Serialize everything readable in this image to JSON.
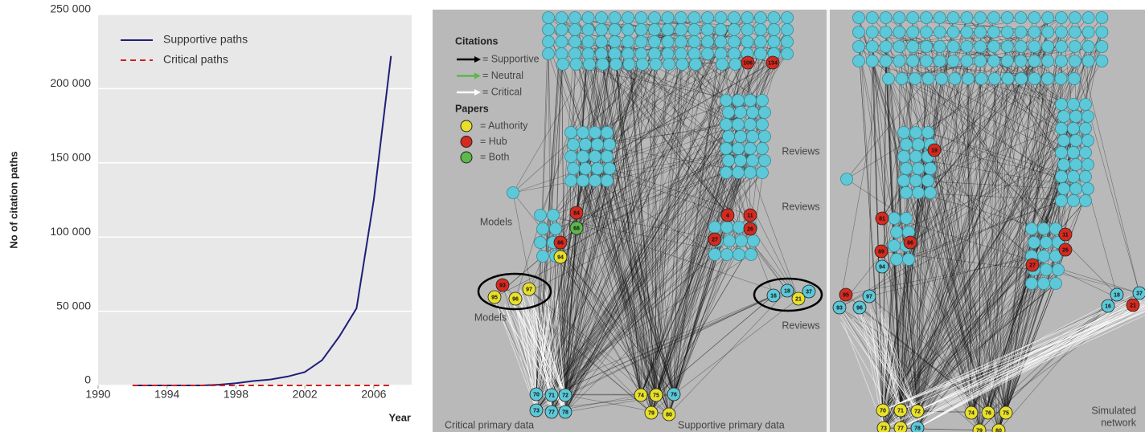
{
  "chart_data": {
    "type": "line",
    "ylabel": "No of citation paths",
    "xlabel": "Year",
    "x": [
      1992,
      1993,
      1994,
      1995,
      1996,
      1997,
      1998,
      1999,
      2000,
      2001,
      2002,
      2003,
      2004,
      2005,
      2006,
      2007
    ],
    "series": [
      {
        "name": "Supportive paths",
        "color": "#1f1f78",
        "dash": false,
        "values": [
          0,
          0,
          0,
          0,
          0,
          500,
          1500,
          3000,
          4000,
          6000,
          9000,
          17000,
          33000,
          52000,
          125000,
          222000
        ]
      },
      {
        "name": "Critical paths",
        "color": "#cc2222",
        "dash": true,
        "values": [
          0,
          0,
          0,
          0,
          0,
          0,
          0,
          0,
          0,
          0,
          0,
          0,
          0,
          0,
          0,
          0
        ]
      }
    ],
    "xlim": [
      1990,
      2008.2
    ],
    "xticks": [
      1990,
      1994,
      1998,
      2002,
      2006
    ],
    "ylim": [
      0,
      250000
    ],
    "yticks": [
      0,
      {
        "value": 50000,
        "label": "50 000"
      },
      {
        "value": 100000,
        "label": "100 000"
      },
      {
        "value": 150000,
        "label": "150 000"
      },
      {
        "value": 200000,
        "label": "200 000"
      },
      {
        "value": 250000,
        "label": "250 000"
      }
    ],
    "grid": true,
    "legend": "top-left"
  },
  "network": {
    "legend": {
      "citations": {
        "title": "Citations",
        "items": [
          "= Supportive",
          "= Neutral",
          "= Critical"
        ]
      },
      "papers": {
        "title": "Papers",
        "items": [
          "= Authority",
          "= Hub",
          "= Both"
        ]
      }
    },
    "panels": [
      {
        "labels": [
          "Models",
          "Models",
          "Reviews",
          "Reviews",
          "Reviews",
          "Critical primary data",
          "Supportive primary data"
        ],
        "nodes": [
          {
            "label": "106",
            "color": "#d42a1f"
          },
          {
            "label": "134",
            "color": "#d42a1f"
          },
          {
            "label": "84",
            "color": "#d42a1f"
          },
          {
            "label": "68",
            "color": "#5cb84a"
          },
          {
            "label": "86",
            "color": "#d42a1f"
          },
          {
            "label": "94",
            "color": "#e8e02a"
          },
          {
            "label": "4",
            "color": "#d42a1f"
          },
          {
            "label": "11",
            "color": "#d42a1f"
          },
          {
            "label": "26",
            "color": "#d42a1f"
          },
          {
            "label": "27",
            "color": "#d42a1f"
          },
          {
            "label": "93",
            "color": "#d42a1f"
          },
          {
            "label": "97",
            "color": "#e8e02a"
          },
          {
            "label": "95",
            "color": "#e8e02a"
          },
          {
            "label": "96",
            "color": "#e8e02a"
          },
          {
            "label": "16",
            "color": "#5cc8d8"
          },
          {
            "label": "18",
            "color": "#5cc8d8"
          },
          {
            "label": "37",
            "color": "#5cc8d8"
          },
          {
            "label": "21",
            "color": "#e8e02a"
          },
          {
            "label": "70",
            "color": "#5cc8d8"
          },
          {
            "label": "71",
            "color": "#5cc8d8"
          },
          {
            "label": "72",
            "color": "#5cc8d8"
          },
          {
            "label": "73",
            "color": "#5cc8d8"
          },
          {
            "label": "77",
            "color": "#5cc8d8"
          },
          {
            "label": "78",
            "color": "#5cc8d8"
          },
          {
            "label": "74",
            "color": "#e8e02a"
          },
          {
            "label": "75",
            "color": "#e8e02a"
          },
          {
            "label": "76",
            "color": "#5cc8d8"
          },
          {
            "label": "79",
            "color": "#e8e02a"
          },
          {
            "label": "80",
            "color": "#e8e02a"
          }
        ]
      },
      {
        "labels": [
          "Simulated",
          "network"
        ],
        "nodes": [
          {
            "label": "19",
            "color": "#d42a1f"
          },
          {
            "label": "81",
            "color": "#d42a1f"
          },
          {
            "label": "86",
            "color": "#d42a1f"
          },
          {
            "label": "89",
            "color": "#d42a1f"
          },
          {
            "label": "94",
            "color": "#5cc8d8"
          },
          {
            "label": "11",
            "color": "#d42a1f"
          },
          {
            "label": "26",
            "color": "#d42a1f"
          },
          {
            "label": "27",
            "color": "#d42a1f"
          },
          {
            "label": "95",
            "color": "#d42a1f"
          },
          {
            "label": "97",
            "color": "#5cc8d8"
          },
          {
            "label": "93",
            "color": "#5cc8d8"
          },
          {
            "label": "96",
            "color": "#5cc8d8"
          },
          {
            "label": "18",
            "color": "#5cc8d8"
          },
          {
            "label": "37",
            "color": "#5cc8d8"
          },
          {
            "label": "16",
            "color": "#5cc8d8"
          },
          {
            "label": "21",
            "color": "#d42a1f"
          },
          {
            "label": "70",
            "color": "#e8e02a"
          },
          {
            "label": "71",
            "color": "#e8e02a"
          },
          {
            "label": "72",
            "color": "#e8e02a"
          },
          {
            "label": "73",
            "color": "#e8e02a"
          },
          {
            "label": "77",
            "color": "#e8e02a"
          },
          {
            "label": "78",
            "color": "#5cc8d8"
          },
          {
            "label": "74",
            "color": "#e8e02a"
          },
          {
            "label": "76",
            "color": "#e8e02a"
          },
          {
            "label": "75",
            "color": "#e8e02a"
          },
          {
            "label": "79",
            "color": "#e8e02a"
          },
          {
            "label": "80",
            "color": "#e8e02a"
          }
        ]
      }
    ]
  }
}
